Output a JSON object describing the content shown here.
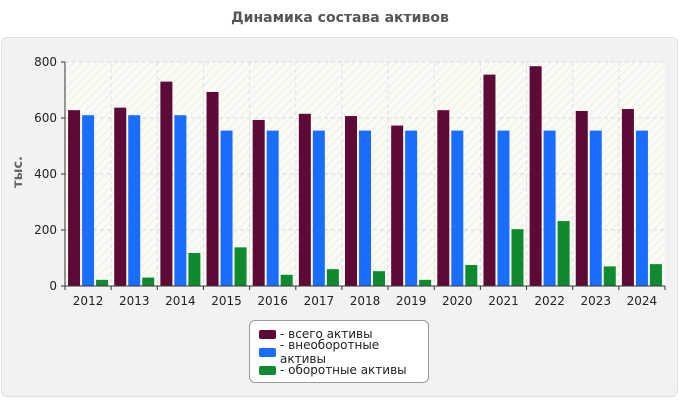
{
  "chart_data": {
    "type": "bar",
    "title": "Динамика состава активов",
    "xlabel": "",
    "ylabel": "тыс.",
    "ylim": [
      0,
      800
    ],
    "yticks": [
      0,
      200,
      400,
      600,
      800
    ],
    "categories": [
      "2012",
      "2013",
      "2014",
      "2015",
      "2016",
      "2017",
      "2018",
      "2019",
      "2020",
      "2021",
      "2022",
      "2023",
      "2024"
    ],
    "series": [
      {
        "name": "всего активы",
        "color": "#5e0a36",
        "values": [
          628,
          637,
          730,
          693,
          593,
          615,
          607,
          573,
          628,
          755,
          785,
          625,
          632
        ]
      },
      {
        "name": "внеоборотные активы",
        "color": "#1a6eff",
        "values": [
          610,
          610,
          610,
          555,
          555,
          555,
          555,
          555,
          555,
          555,
          555,
          555,
          555
        ]
      },
      {
        "name": "оборотные активы",
        "color": "#0f8a2e",
        "values": [
          22,
          30,
          118,
          138,
          40,
          60,
          53,
          22,
          75,
          203,
          232,
          70,
          78
        ]
      }
    ],
    "grid": true,
    "legend_position": "bottom"
  }
}
